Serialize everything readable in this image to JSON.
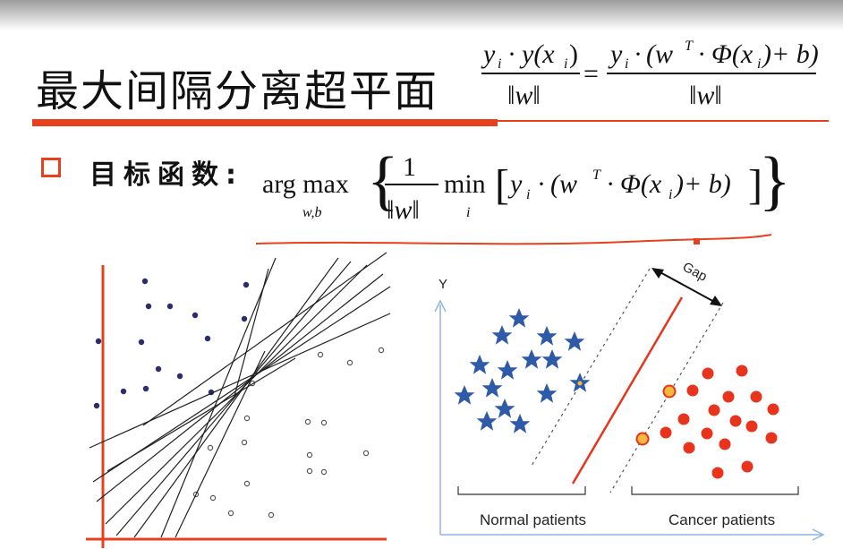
{
  "slide": {
    "title": "最大间隔分离超平面",
    "bullet_label": "目标函数:"
  },
  "formulas": {
    "ratio": {
      "lhs_num_y": "y",
      "lhs_num_i": "i",
      "lhs_num_dot": "·",
      "lhs_num_yx": "y(x",
      "lhs_num_i2": "i",
      "lhs_num_close": ")",
      "lhs_den": "‖w‖",
      "equals": "=",
      "rhs_num_y": "y",
      "rhs_num_i": "i",
      "rhs_num_dot": "·",
      "rhs_num_open": "(w",
      "rhs_num_T": "T",
      "rhs_num_phi": "· Φ(x",
      "rhs_num_i2": "i",
      "rhs_num_close": ")+ b)",
      "rhs_den": "‖w‖"
    },
    "objective": {
      "argmax": "arg max",
      "sub": "w,b",
      "brace_open": "{",
      "frac_num": "1",
      "frac_den": "‖w‖",
      "min": "min",
      "min_sub": "i",
      "body_open": "[",
      "body_y": "y",
      "body_i": "i",
      "body_dot": "·",
      "body_paren": "(w",
      "body_T": "T",
      "body_phi": "· Φ(x",
      "body_i2": "i",
      "body_close": ")+ b)",
      "body_bracket": "]",
      "brace_close": "}"
    }
  },
  "left_plot": {
    "axis_color": "#e8401c",
    "filled_dot_color": "#2b2b6e"
  },
  "right_plot": {
    "y_label": "Y",
    "gap_label": "Gap",
    "group_left_label": "Normal patients",
    "group_right_label": "Cancer patients",
    "star_color": "#2e5aa8",
    "dot_color": "#e8341c",
    "support_fill": "#f6b93b",
    "axis_color": "#8db4e2"
  },
  "colors": {
    "accent": "#e8401c"
  }
}
